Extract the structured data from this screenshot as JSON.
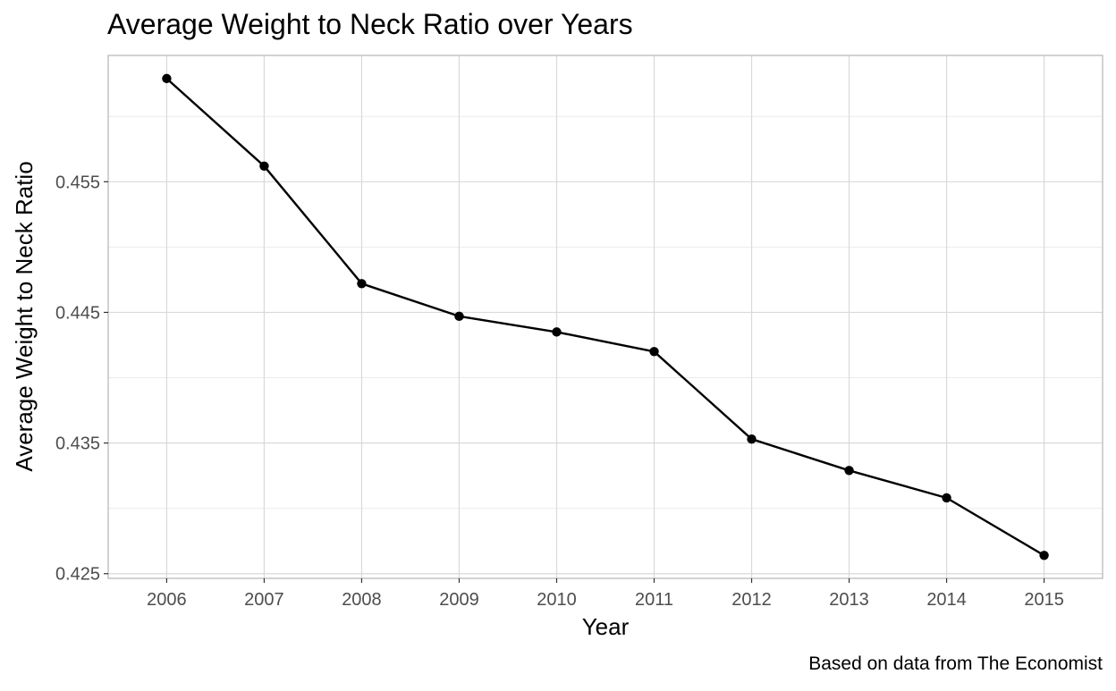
{
  "chart_data": {
    "type": "line",
    "title": "Average Weight to Neck Ratio over Years",
    "xlabel": "Year",
    "ylabel": "Average Weight to Neck Ratio",
    "caption": "Based on data from The Economist",
    "x": [
      2006,
      2007,
      2008,
      2009,
      2010,
      2011,
      2012,
      2013,
      2014,
      2015
    ],
    "y": [
      0.4629,
      0.4562,
      0.4472,
      0.4447,
      0.4435,
      0.442,
      0.4353,
      0.4329,
      0.4308,
      0.4264
    ],
    "x_ticks": [
      "2006",
      "2007",
      "2008",
      "2009",
      "2010",
      "2011",
      "2012",
      "2013",
      "2014",
      "2015"
    ],
    "y_ticks": [
      "0.425",
      "0.435",
      "0.445",
      "0.455"
    ],
    "y_tick_values": [
      0.425,
      0.435,
      0.445,
      0.455
    ],
    "y_minor_values": [
      0.43,
      0.44,
      0.45,
      0.46
    ],
    "xlim": [
      2005.4,
      2015.6
    ],
    "ylim": [
      0.42464,
      0.46467
    ],
    "grid": true,
    "line_color": "#000000",
    "grid_color": "#d9d9d9",
    "minor_grid_color": "#ebebeb",
    "panel_border_color": "#b3b3b3",
    "tick_label_color": "#4d4d4d"
  }
}
